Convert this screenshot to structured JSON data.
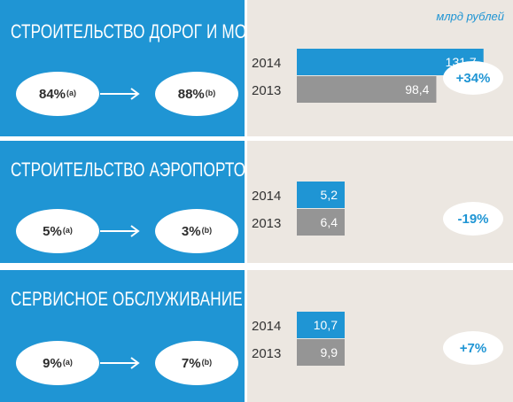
{
  "unit_label": "млрд рублей",
  "segments": [
    {
      "title": "СТРОИТЕЛЬСТВО ДОРОГ И МОСТОВ",
      "share_from": "84%",
      "share_from_note": "(a)",
      "share_to": "88%",
      "share_to_note": "(b)",
      "change": "+34%"
    },
    {
      "title": "СТРОИТЕЛЬСТВО АЭРОПОРТОВ",
      "share_from": "5%",
      "share_from_note": "(a)",
      "share_to": "3%",
      "share_to_note": "(b)",
      "change": "-19%"
    },
    {
      "title": "СЕРВИСНОЕ ОБСЛУЖИВАНИЕ",
      "share_from": "9%",
      "share_from_note": "(a)",
      "share_to": "7%",
      "share_to_note": "(b)",
      "change": "+7%"
    }
  ],
  "chart_data": [
    {
      "type": "bar",
      "orientation": "horizontal",
      "categories": [
        "2014",
        "2013"
      ],
      "values": [
        131.7,
        98.4
      ],
      "value_labels": [
        "131,7",
        "98,4"
      ],
      "colors": [
        "#1f95d4",
        "#959595"
      ]
    },
    {
      "type": "bar",
      "orientation": "horizontal",
      "categories": [
        "2014",
        "2013"
      ],
      "values": [
        5.2,
        6.4
      ],
      "value_labels": [
        "5,2",
        "6,4"
      ],
      "colors": [
        "#1f95d4",
        "#959595"
      ]
    },
    {
      "type": "bar",
      "orientation": "horizontal",
      "categories": [
        "2014",
        "2013"
      ],
      "values": [
        10.7,
        9.9
      ],
      "value_labels": [
        "10,7",
        "9,9"
      ],
      "colors": [
        "#1f95d4",
        "#959595"
      ]
    }
  ],
  "colors": {
    "accent": "#1f95d4",
    "previous_year": "#959595",
    "right_background": "#ece7e1"
  }
}
